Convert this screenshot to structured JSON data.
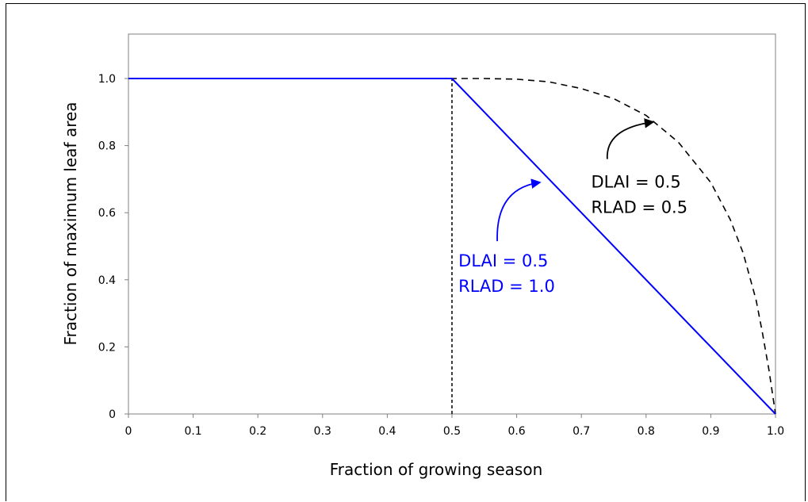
{
  "chart_data": {
    "type": "line",
    "title": "",
    "xlabel": "Fraction of growing season",
    "ylabel": "Fraction of maximum leaf area",
    "xlim": [
      0,
      1.0
    ],
    "ylim": [
      0,
      1.12
    ],
    "x_ticks": [
      {
        "value": 0,
        "label": "0"
      },
      {
        "value": 0.1,
        "label": "0.1"
      },
      {
        "value": 0.2,
        "label": "0.2"
      },
      {
        "value": 0.3,
        "label": "0.3"
      },
      {
        "value": 0.4,
        "label": "0.4"
      },
      {
        "value": 0.5,
        "label": "0.5"
      },
      {
        "value": 0.6,
        "label": "0.6"
      },
      {
        "value": 0.7,
        "label": "0.7"
      },
      {
        "value": 0.8,
        "label": "0.8"
      },
      {
        "value": 0.9,
        "label": "0.9"
      },
      {
        "value": 1.0,
        "label": "1.0"
      }
    ],
    "y_ticks": [
      {
        "value": 0,
        "label": "0"
      },
      {
        "value": 0.2,
        "label": "0.2"
      },
      {
        "value": 0.4,
        "label": "0.4"
      },
      {
        "value": 0.6,
        "label": "0.6"
      },
      {
        "value": 0.8,
        "label": "0.8"
      },
      {
        "value": 1.0,
        "label": "1.0"
      }
    ],
    "grid": false,
    "series": [
      {
        "color": "#0000ff",
        "style": "solid",
        "points": [
          [
            0,
            1.0
          ],
          [
            0.5,
            1.0
          ],
          [
            1.0,
            0
          ]
        ]
      },
      {
        "color": "#000000",
        "style": "dashed",
        "points": [
          [
            0,
            1.0
          ],
          [
            0.5,
            1.0
          ],
          [
            0.55,
            1.0
          ],
          [
            0.6,
            0.998
          ],
          [
            0.65,
            0.99
          ],
          [
            0.7,
            0.97
          ],
          [
            0.75,
            0.94
          ],
          [
            0.8,
            0.89
          ],
          [
            0.85,
            0.81
          ],
          [
            0.9,
            0.69
          ],
          [
            0.93,
            0.58
          ],
          [
            0.95,
            0.48
          ],
          [
            0.97,
            0.34
          ],
          [
            0.98,
            0.24
          ],
          [
            0.99,
            0.13
          ],
          [
            1.0,
            0
          ]
        ]
      }
    ],
    "reference_lines": [
      {
        "orientation": "vertical",
        "x": 0.5,
        "y_range": [
          0,
          1.0
        ],
        "color": "#000000",
        "style": "dotted"
      }
    ],
    "annotations": [
      {
        "lines": [
          "DLAI = 0.5",
          "RLAD = 1.0"
        ],
        "color": "#0000ff",
        "x": 0.51,
        "y": 0.44,
        "arrow_to": [
          0.635,
          0.69
        ],
        "arrow_from": [
          0.57,
          0.515
        ]
      },
      {
        "lines": [
          "DLAI = 0.5",
          "RLAD = 0.5"
        ],
        "color": "#000000",
        "x": 0.715,
        "y": 0.675,
        "arrow_to": [
          0.81,
          0.87
        ],
        "arrow_from": [
          0.74,
          0.76
        ]
      }
    ]
  }
}
